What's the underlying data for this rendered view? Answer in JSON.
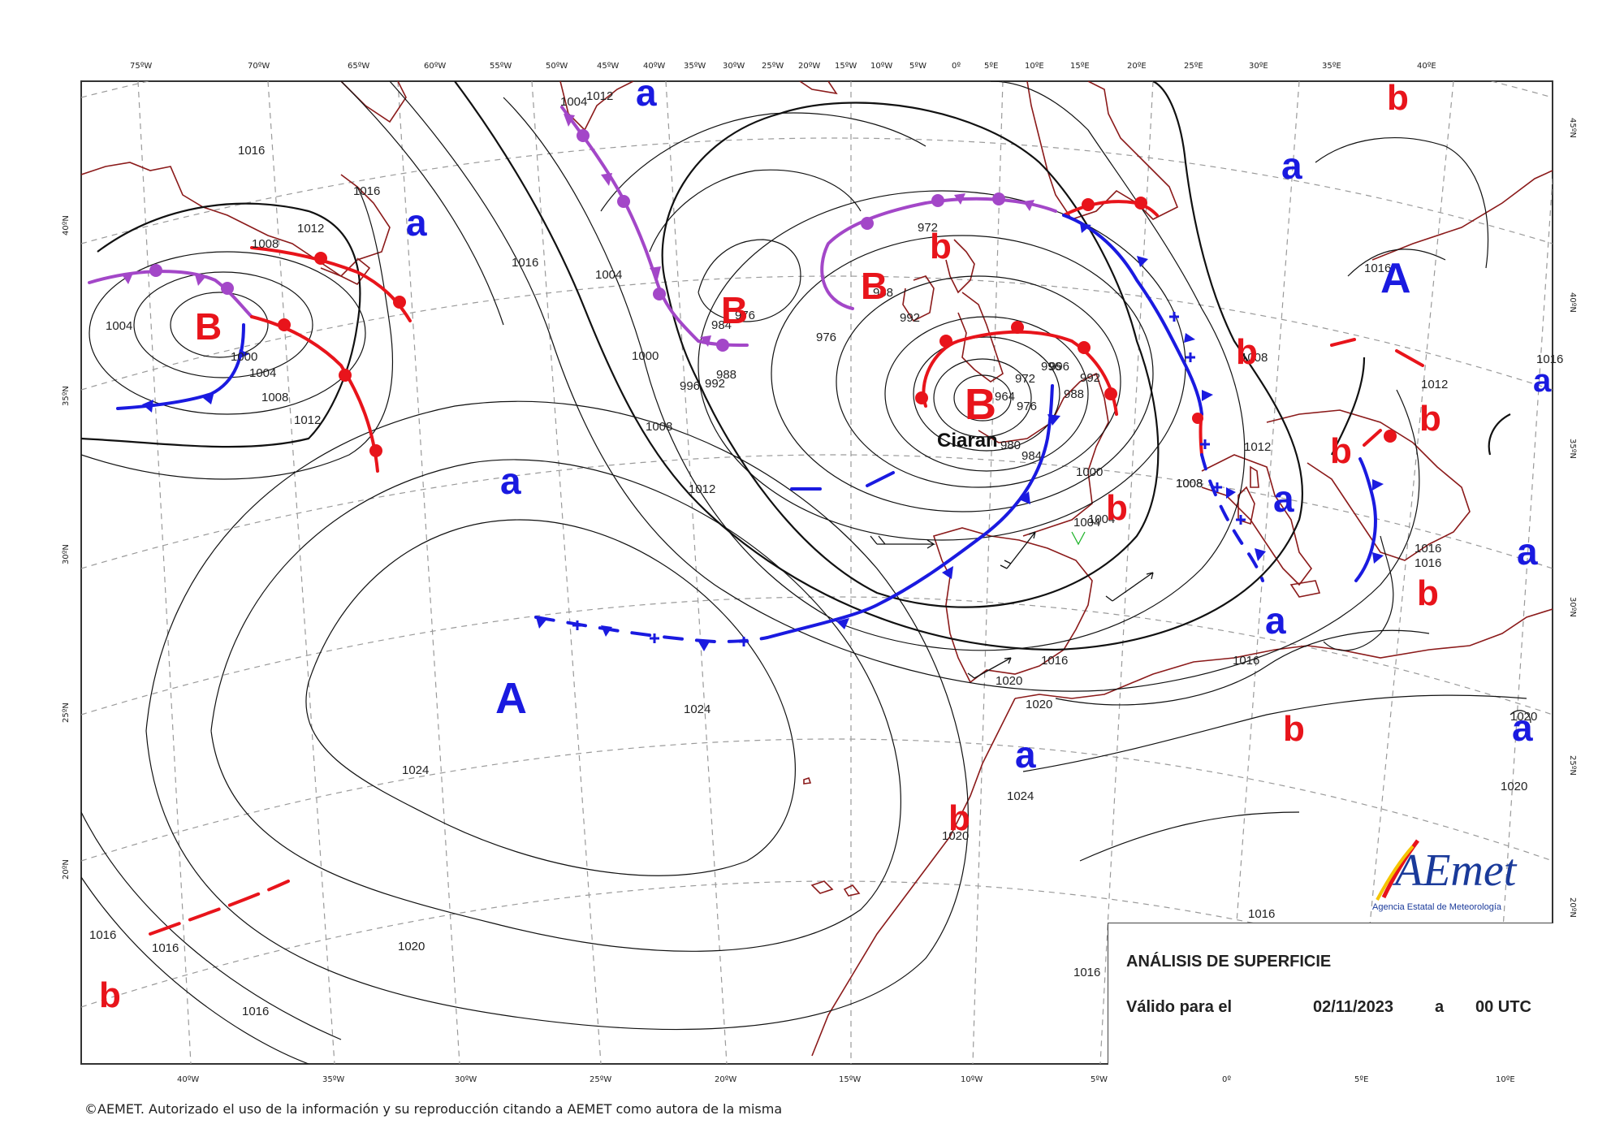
{
  "title": "ANÁLISIS DE SUPERFICIE",
  "valid": {
    "label": "Válido para el",
    "date": "02/11/2023",
    "connector": "a",
    "time": "00 UTC"
  },
  "storm_name": "Ciaran",
  "copyright": "©AEMET. Autorizado el uso de la información y su reproducción citando a AEMET como autora de la misma",
  "logo": {
    "text": "AEmet",
    "subtitle": "Agencia Estatal de Meteorología"
  },
  "top_lon_labels": [
    "75ºW",
    "70ºW",
    "65ºW",
    "60ºW",
    "55ºW",
    "50ºW",
    "45ºW",
    "40ºW",
    "35ºW",
    "30ºW",
    "25ºW",
    "20ºW",
    "15ºW",
    "10ºW",
    "5ºW",
    "0º",
    "5ºE",
    "10ºE",
    "15ºE",
    "20ºE",
    "25ºE",
    "30ºE",
    "35ºE",
    "40ºE"
  ],
  "bottom_lon_labels": [
    "40ºW",
    "35ºW",
    "30ºW",
    "25ºW",
    "20ºW",
    "15ºW",
    "10ºW",
    "5ºW",
    "0º",
    "5ºE",
    "10ºE"
  ],
  "left_lat_labels": [
    "40ºN",
    "35ºN",
    "30ºN",
    "25ºN",
    "20ºN"
  ],
  "right_lat_labels": [
    "45ºN",
    "40ºN",
    "35ºN",
    "30ºN",
    "25ºN",
    "20ºN"
  ],
  "isobar_labels": [
    "1016",
    "1016",
    "1012",
    "1008",
    "1004",
    "1004",
    "1000",
    "1004",
    "1008",
    "1012",
    "1016",
    "1004",
    "1012",
    "1008",
    "1004",
    "1000",
    "996",
    "992",
    "984",
    "988",
    "1008",
    "1012",
    "972",
    "968",
    "976",
    "976",
    "992",
    "996",
    "984",
    "980",
    "976",
    "972",
    "964",
    "988",
    "992",
    "996",
    "1000",
    "1004",
    "1008",
    "1008",
    "1012",
    "1016",
    "1024",
    "1024",
    "1020",
    "1016",
    "1016",
    "1016",
    "1020",
    "1016",
    "1020",
    "1020",
    "1016",
    "1024",
    "1016",
    "1020",
    "1016",
    "1016",
    "1016",
    "1012",
    "1020",
    "1016"
  ],
  "pressure_systems": [
    {
      "letter": "B",
      "kind": "low-major"
    },
    {
      "letter": "B",
      "kind": "low-major"
    },
    {
      "letter": "B",
      "kind": "low-major"
    },
    {
      "letter": "B",
      "kind": "low-major"
    },
    {
      "letter": "A",
      "kind": "high-major"
    },
    {
      "letter": "A",
      "kind": "high-major"
    },
    {
      "letter": "a",
      "kind": "high-minor"
    },
    {
      "letter": "a",
      "kind": "high-minor"
    },
    {
      "letter": "a",
      "kind": "high-minor"
    },
    {
      "letter": "a",
      "kind": "high-minor"
    },
    {
      "letter": "a",
      "kind": "high-minor"
    },
    {
      "letter": "a",
      "kind": "high-minor"
    },
    {
      "letter": "a",
      "kind": "high-minor"
    },
    {
      "letter": "a",
      "kind": "high-minor"
    },
    {
      "letter": "a",
      "kind": "high-minor"
    },
    {
      "letter": "a",
      "kind": "high-minor"
    },
    {
      "letter": "b",
      "kind": "low-minor"
    },
    {
      "letter": "b",
      "kind": "low-minor"
    },
    {
      "letter": "b",
      "kind": "low-minor"
    },
    {
      "letter": "b",
      "kind": "low-minor"
    },
    {
      "letter": "b",
      "kind": "low-minor"
    },
    {
      "letter": "b",
      "kind": "low-minor"
    },
    {
      "letter": "b",
      "kind": "low-minor"
    },
    {
      "letter": "b",
      "kind": "low-minor"
    },
    {
      "letter": "b",
      "kind": "low-minor"
    },
    {
      "letter": "b",
      "kind": "low-minor"
    },
    {
      "letter": "b",
      "kind": "low-minor"
    },
    {
      "letter": "b",
      "kind": "low-minor"
    }
  ],
  "colors": {
    "low": "#e8141b",
    "high": "#1a1ae0",
    "warm_front": "#e8141b",
    "cold_front": "#1a1ae0",
    "occluded_front": "#a347c8",
    "coastline": "#8b1a1a",
    "isobar": "#111111",
    "graticule": "#9a9a9a"
  }
}
